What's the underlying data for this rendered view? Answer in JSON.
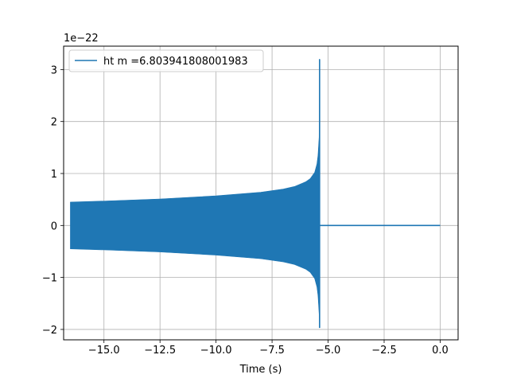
{
  "chart_data": {
    "type": "line",
    "title": "",
    "xlabel": "Time (s)",
    "ylabel": "",
    "y_scale_label": "1e−22",
    "xlim": [
      -16.8,
      0.8
    ],
    "ylim": [
      -2.2,
      3.45
    ],
    "x_ticks": [
      -15.0,
      -12.5,
      -10.0,
      -7.5,
      -5.0,
      -2.5,
      0.0
    ],
    "x_tick_labels": [
      "−15.0",
      "−12.5",
      "−10.0",
      "−7.5",
      "−5.0",
      "−2.5",
      "0.0"
    ],
    "y_ticks": [
      -2,
      -1,
      0,
      1,
      2,
      3
    ],
    "y_tick_labels": [
      "−2",
      "−1",
      "0",
      "1",
      "2",
      "3"
    ],
    "grid": true,
    "legend_position": "upper-left",
    "series": [
      {
        "name": "ht m =6.803941808001983",
        "color": "#1f77b4",
        "envelope": {
          "x": [
            -16.5,
            -15.0,
            -12.5,
            -10.0,
            -8.0,
            -7.0,
            -6.5,
            -6.0,
            -5.8,
            -5.6,
            -5.5,
            -5.45,
            -5.4,
            -5.38
          ],
          "upper": [
            0.45,
            0.47,
            0.51,
            0.57,
            0.64,
            0.7,
            0.75,
            0.84,
            0.9,
            1.02,
            1.18,
            1.35,
            1.7,
            3.2
          ],
          "lower": [
            -0.45,
            -0.47,
            -0.51,
            -0.57,
            -0.64,
            -0.7,
            -0.75,
            -0.84,
            -0.9,
            -1.02,
            -1.18,
            -1.35,
            -1.7,
            -1.97
          ]
        },
        "ringdown": {
          "x": [
            -5.38,
            0.0
          ],
          "y": [
            0.0,
            0.0
          ]
        }
      }
    ]
  }
}
